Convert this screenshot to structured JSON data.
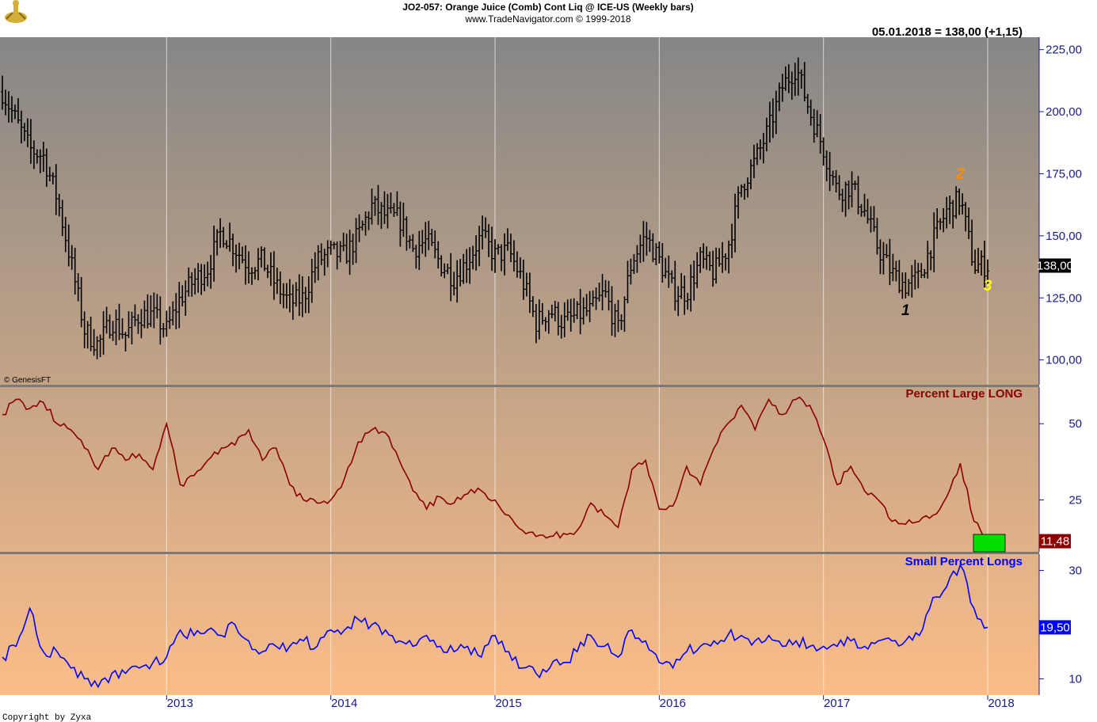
{
  "header": {
    "title": "JO2-057:  Orange Juice (Comb) Cont Liq @ ICE-US  (Weekly bars)",
    "subtitle": "www.TradeNavigator.com © 1999-2018",
    "last_quote": "05.01.2018 = 138,00 (+1,15)",
    "watermark": "© GenesisFT",
    "copyright": "Copyright by Zyxa"
  },
  "colors": {
    "price": "#000000",
    "large_line": "#8b0000",
    "small_line": "#0000ff",
    "axis_text": "#1a1a8c",
    "highlight_box": "#00e000",
    "wave_1": "#000000",
    "wave_2": "#ff8c00",
    "wave_3": "#ffff00",
    "logo": "#d4af37",
    "logo_icon": "trading-logo-icon"
  },
  "chart_data": [
    {
      "type": "ohlc",
      "title": "",
      "frequency": "weekly",
      "ylim": [
        90,
        230
      ],
      "yticks": [
        "225,00",
        "200,00",
        "175,00",
        "150,00",
        "125,00",
        "100,00"
      ],
      "ytick_values": [
        225,
        200,
        175,
        150,
        125,
        100
      ],
      "last_value_label": "138,00",
      "x_range": [
        "2012-01",
        "2018-01"
      ],
      "close_path": [
        [
          "2012-01",
          208
        ],
        [
          "2012-03",
          185
        ],
        [
          "2012-04",
          182
        ],
        [
          "2012-05",
          165
        ],
        [
          "2012-06",
          140
        ],
        [
          "2012-07",
          112
        ],
        [
          "2012-08",
          106
        ],
        [
          "2012-09",
          116
        ],
        [
          "2012-10",
          110
        ],
        [
          "2012-11",
          118
        ],
        [
          "2012-12",
          118
        ],
        [
          "2013-01",
          112
        ],
        [
          "2013-02",
          125
        ],
        [
          "2013-03",
          132
        ],
        [
          "2013-04",
          137
        ],
        [
          "2013-05",
          152
        ],
        [
          "2013-06",
          145
        ],
        [
          "2013-07",
          138
        ],
        [
          "2013-08",
          140
        ],
        [
          "2013-09",
          130
        ],
        [
          "2013-10",
          123
        ],
        [
          "2013-11",
          125
        ],
        [
          "2013-12",
          140
        ],
        [
          "2014-01",
          143
        ],
        [
          "2014-02",
          142
        ],
        [
          "2014-03",
          150
        ],
        [
          "2014-04",
          162
        ],
        [
          "2014-05",
          158
        ],
        [
          "2014-06",
          157
        ],
        [
          "2014-07",
          145
        ],
        [
          "2014-08",
          148
        ],
        [
          "2014-09",
          139
        ],
        [
          "2014-10",
          133
        ],
        [
          "2014-11",
          140
        ],
        [
          "2014-12",
          150
        ],
        [
          "2015-01",
          142
        ],
        [
          "2015-02",
          144
        ],
        [
          "2015-03",
          132
        ],
        [
          "2015-04",
          115
        ],
        [
          "2015-05",
          120
        ],
        [
          "2015-06",
          115
        ],
        [
          "2015-07",
          118
        ],
        [
          "2015-08",
          120
        ],
        [
          "2015-09",
          127
        ],
        [
          "2015-10",
          112
        ],
        [
          "2015-11",
          140
        ],
        [
          "2015-12",
          150
        ],
        [
          "2016-01",
          140
        ],
        [
          "2016-02",
          128
        ],
        [
          "2016-03",
          127
        ],
        [
          "2016-04",
          140
        ],
        [
          "2016-05",
          135
        ],
        [
          "2016-06",
          145
        ],
        [
          "2016-07",
          170
        ],
        [
          "2016-08",
          180
        ],
        [
          "2016-09",
          193
        ],
        [
          "2016-10",
          210
        ],
        [
          "2016-11",
          218
        ],
        [
          "2016-12",
          200
        ],
        [
          "2017-01",
          185
        ],
        [
          "2017-02",
          168
        ],
        [
          "2017-03",
          170
        ],
        [
          "2017-04",
          160
        ],
        [
          "2017-05",
          145
        ],
        [
          "2017-06",
          135
        ],
        [
          "2017-07",
          130
        ],
        [
          "2017-08",
          133
        ],
        [
          "2017-09",
          148
        ],
        [
          "2017-10",
          160
        ],
        [
          "2017-11",
          165
        ],
        [
          "2017-12",
          138
        ],
        [
          "2018-01",
          138
        ]
      ],
      "annotations": [
        {
          "text": "1",
          "x": "2017-07",
          "y": 118
        },
        {
          "text": "2",
          "x": "2017-11",
          "y": 173
        },
        {
          "text": "3",
          "x": "2018-01",
          "y": 128
        }
      ]
    },
    {
      "type": "line",
      "title": "Percent Large LONG",
      "ylim": [
        8,
        62
      ],
      "yticks": [
        "50",
        "25"
      ],
      "ytick_values": [
        50,
        25
      ],
      "last_value_label": "11,48",
      "series": [
        {
          "name": "Percent Large LONG",
          "points": [
            [
              "2012-01",
              53
            ],
            [
              "2012-02",
              58
            ],
            [
              "2012-03",
              55
            ],
            [
              "2012-04",
              57
            ],
            [
              "2012-05",
              50
            ],
            [
              "2012-06",
              48
            ],
            [
              "2012-07",
              42
            ],
            [
              "2012-08",
              35
            ],
            [
              "2012-09",
              42
            ],
            [
              "2012-10",
              38
            ],
            [
              "2012-11",
              40
            ],
            [
              "2012-12",
              35
            ],
            [
              "2013-01",
              50
            ],
            [
              "2013-02",
              30
            ],
            [
              "2013-03",
              33
            ],
            [
              "2013-04",
              38
            ],
            [
              "2013-05",
              42
            ],
            [
              "2013-06",
              43
            ],
            [
              "2013-07",
              48
            ],
            [
              "2013-08",
              38
            ],
            [
              "2013-09",
              42
            ],
            [
              "2013-10",
              30
            ],
            [
              "2013-11",
              25
            ],
            [
              "2013-12",
              24
            ],
            [
              "2014-01",
              25
            ],
            [
              "2014-02",
              32
            ],
            [
              "2014-03",
              44
            ],
            [
              "2014-04",
              48
            ],
            [
              "2014-05",
              47
            ],
            [
              "2014-06",
              38
            ],
            [
              "2014-07",
              28
            ],
            [
              "2014-08",
              22
            ],
            [
              "2014-09",
              26
            ],
            [
              "2014-10",
              24
            ],
            [
              "2014-11",
              27
            ],
            [
              "2014-12",
              28
            ],
            [
              "2015-01",
              25
            ],
            [
              "2015-02",
              20
            ],
            [
              "2015-03",
              15
            ],
            [
              "2015-04",
              13
            ],
            [
              "2015-05",
              13
            ],
            [
              "2015-06",
              14
            ],
            [
              "2015-07",
              15
            ],
            [
              "2015-08",
              24
            ],
            [
              "2015-09",
              20
            ],
            [
              "2015-10",
              16
            ],
            [
              "2015-11",
              35
            ],
            [
              "2015-12",
              38
            ],
            [
              "2016-01",
              22
            ],
            [
              "2016-02",
              23
            ],
            [
              "2016-03",
              36
            ],
            [
              "2016-04",
              30
            ],
            [
              "2016-05",
              42
            ],
            [
              "2016-06",
              50
            ],
            [
              "2016-07",
              56
            ],
            [
              "2016-08",
              48
            ],
            [
              "2016-09",
              58
            ],
            [
              "2016-10",
              53
            ],
            [
              "2016-11",
              58
            ],
            [
              "2016-12",
              56
            ],
            [
              "2017-01",
              45
            ],
            [
              "2017-02",
              30
            ],
            [
              "2017-03",
              36
            ],
            [
              "2017-04",
              28
            ],
            [
              "2017-05",
              25
            ],
            [
              "2017-06",
              18
            ],
            [
              "2017-07",
              17
            ],
            [
              "2017-08",
              18
            ],
            [
              "2017-09",
              20
            ],
            [
              "2017-10",
              26
            ],
            [
              "2017-11",
              37
            ],
            [
              "2017-12",
              18
            ],
            [
              "2018-01",
              11.48
            ]
          ]
        }
      ]
    },
    {
      "type": "line",
      "title": "Small Percent Longs",
      "ylim": [
        7,
        33
      ],
      "yticks": [
        "30",
        "10"
      ],
      "ytick_values": [
        30,
        10
      ],
      "last_value_label": "19,50",
      "series": [
        {
          "name": "Small Percent Longs",
          "points": [
            [
              "2012-01",
              14
            ],
            [
              "2012-02",
              16
            ],
            [
              "2012-03",
              23
            ],
            [
              "2012-04",
              15
            ],
            [
              "2012-05",
              15
            ],
            [
              "2012-06",
              12
            ],
            [
              "2012-07",
              10
            ],
            [
              "2012-08",
              8.5
            ],
            [
              "2012-09",
              11
            ],
            [
              "2012-10",
              11
            ],
            [
              "2012-11",
              12
            ],
            [
              "2012-12",
              13
            ],
            [
              "2013-01",
              14
            ],
            [
              "2013-02",
              19
            ],
            [
              "2013-03",
              18
            ],
            [
              "2013-04",
              19
            ],
            [
              "2013-05",
              18
            ],
            [
              "2013-06",
              20
            ],
            [
              "2013-07",
              17
            ],
            [
              "2013-08",
              15
            ],
            [
              "2013-09",
              16
            ],
            [
              "2013-10",
              16
            ],
            [
              "2013-11",
              17
            ],
            [
              "2013-12",
              16
            ],
            [
              "2014-01",
              19
            ],
            [
              "2014-02",
              19
            ],
            [
              "2014-03",
              21
            ],
            [
              "2014-04",
              20
            ],
            [
              "2014-05",
              19
            ],
            [
              "2014-06",
              17
            ],
            [
              "2014-07",
              16
            ],
            [
              "2014-08",
              18
            ],
            [
              "2014-09",
              16
            ],
            [
              "2014-10",
              15
            ],
            [
              "2014-11",
              16
            ],
            [
              "2014-12",
              14
            ],
            [
              "2015-01",
              18
            ],
            [
              "2015-02",
              15
            ],
            [
              "2015-03",
              12
            ],
            [
              "2015-04",
              11
            ],
            [
              "2015-05",
              12
            ],
            [
              "2015-06",
              13
            ],
            [
              "2015-07",
              15
            ],
            [
              "2015-08",
              18
            ],
            [
              "2015-09",
              16
            ],
            [
              "2015-10",
              14
            ],
            [
              "2015-11",
              19
            ],
            [
              "2015-12",
              17
            ],
            [
              "2016-01",
              13
            ],
            [
              "2016-02",
              12
            ],
            [
              "2016-03",
              15
            ],
            [
              "2016-04",
              16
            ],
            [
              "2016-05",
              17
            ],
            [
              "2016-06",
              18
            ],
            [
              "2016-07",
              18
            ],
            [
              "2016-08",
              17
            ],
            [
              "2016-09",
              18
            ],
            [
              "2016-10",
              16
            ],
            [
              "2016-11",
              17
            ],
            [
              "2016-12",
              16
            ],
            [
              "2017-01",
              16
            ],
            [
              "2017-02",
              16
            ],
            [
              "2017-03",
              17
            ],
            [
              "2017-04",
              16
            ],
            [
              "2017-05",
              17
            ],
            [
              "2017-06",
              17
            ],
            [
              "2017-07",
              17
            ],
            [
              "2017-08",
              18
            ],
            [
              "2017-09",
              25
            ],
            [
              "2017-10",
              27
            ],
            [
              "2017-11",
              31
            ],
            [
              "2017-12",
              23
            ],
            [
              "2018-01",
              19.5
            ]
          ]
        }
      ]
    }
  ],
  "x_axis": {
    "labels": [
      "2013",
      "2014",
      "2015",
      "2016",
      "2017",
      "2018"
    ],
    "dates": [
      "2013-01",
      "2014-01",
      "2015-01",
      "2016-01",
      "2017-01",
      "2018-01"
    ]
  }
}
